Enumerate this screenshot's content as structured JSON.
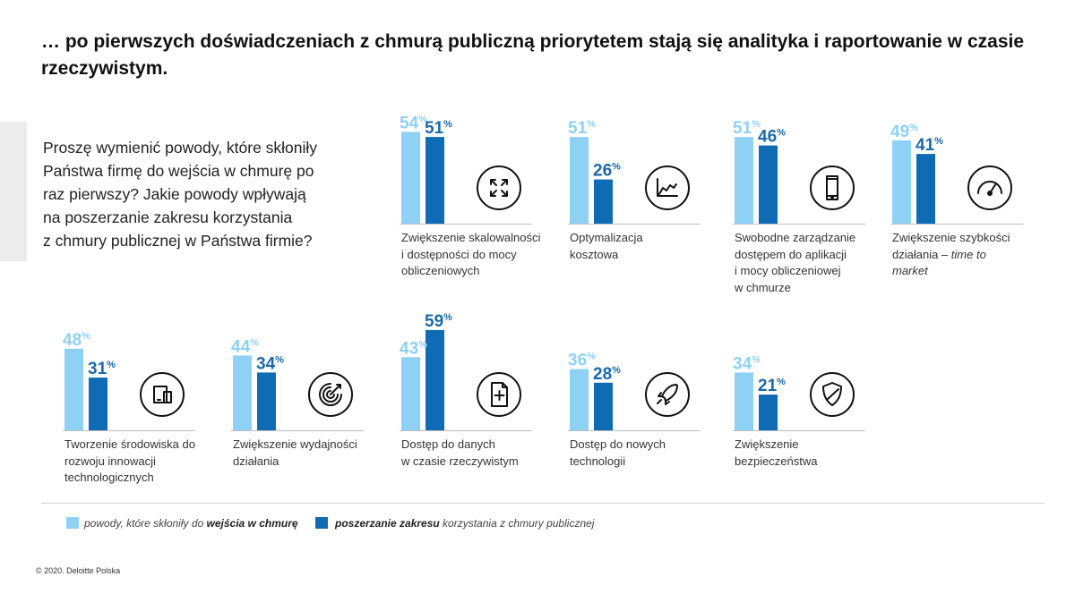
{
  "title": "… po pierwszych doświadczeniach z chmurą publiczną priorytetem stają się analityka i raportowanie w czasie rzeczywistym.",
  "question": "Proszę wymienić powody, które skłoniły\nPaństwa firmę do wejścia w chmurę po\nraz  pierwszy? Jakie powody wpływają\nna poszerzanie zakresu korzystania\nz chmury  publicznej w Państwa firmie?",
  "colors": {
    "first_entry": "#8fd0f5",
    "expansion": "#0f6bb3",
    "first_label": "#8fd0f5",
    "expansion_label": "#1b6aa8"
  },
  "legend": {
    "first_prefix": "powody, które skłoniły do ",
    "first_bold": "wejścia w chmurę",
    "expansion_bold": "poszerzanie zakresu",
    "expansion_suffix": " korzystania z chmury publicznej"
  },
  "copyright": "© 2020. Deloitte Polska",
  "chart_data": {
    "type": "bar",
    "ylim": [
      0,
      100
    ],
    "series": [
      {
        "name": "powody, które skłoniły do wejścia w chmurę",
        "values": [
          54,
          51,
          51,
          49,
          48,
          44,
          43,
          36,
          34
        ]
      },
      {
        "name": "poszerzanie zakresu korzystania z chmury publicznej",
        "values": [
          51,
          26,
          46,
          41,
          31,
          34,
          59,
          28,
          21
        ]
      }
    ],
    "categories": [
      {
        "caption": "Zwiększenie skalowalności\ni dostępności do mocy\nobliczeniowych",
        "icon": "expand-arrows-icon",
        "first_label": "54",
        "expansion_label": "51"
      },
      {
        "caption": "Optymalizacja\nkosztowa",
        "icon": "line-chart-icon",
        "first_label": "51",
        "expansion_label": "26"
      },
      {
        "caption": "Swobodne zarządzanie\ndostępem do aplikacji\ni mocy obliczeniowej\nw chmurze",
        "icon": "smartphone-icon",
        "first_label": "51",
        "expansion_label": "46"
      },
      {
        "caption": "Zwiększenie szybkości\ndziałania – ",
        "caption_italic": "time to\nmarket",
        "icon": "speedometer-icon",
        "first_label": "49",
        "expansion_label": "41"
      },
      {
        "caption": "Tworzenie środowiska do\nrozwoju innowacji\ntechnologicznych",
        "icon": "devices-icon",
        "first_label": "48",
        "expansion_label": "31"
      },
      {
        "caption": "Zwiększenie wydajności\ndziałania",
        "icon": "target-icon",
        "first_label": "44",
        "expansion_label": "34"
      },
      {
        "caption": "Dostęp do danych\nw czasie  rzeczywistym",
        "icon": "document-plus-icon",
        "first_label": "43",
        "expansion_label": "59"
      },
      {
        "caption": "Dostęp do nowych\ntechnologii",
        "icon": "rocket-icon",
        "first_label": "36",
        "expansion_label": "28"
      },
      {
        "caption": "Zwiększenie\nbezpieczeństwa",
        "icon": "shield-icon",
        "first_label": "34",
        "expansion_label": "21"
      }
    ],
    "percent_sign": "%"
  }
}
